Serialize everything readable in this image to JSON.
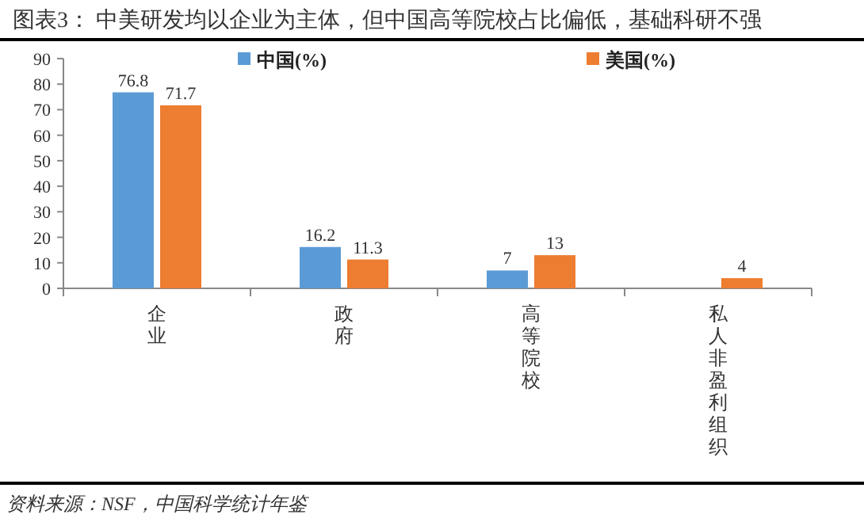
{
  "chart_data": {
    "type": "bar",
    "title": "图表3：  中美研发均以企业为主体，但中国高等院校占比偏低，基础科研不强",
    "categories": [
      "企业",
      "政府",
      "高等院校",
      "私人非盈利组织"
    ],
    "series": [
      {
        "name": "中国(%)",
        "color": "#5b9bd5",
        "values": [
          76.8,
          16.2,
          7,
          null
        ]
      },
      {
        "name": "美国(%)",
        "color": "#ed7d31",
        "values": [
          71.7,
          11.3,
          13,
          4
        ]
      }
    ],
    "ylim": [
      0,
      90
    ],
    "yticks": [
      0,
      10,
      20,
      30,
      40,
      50,
      60,
      70,
      80,
      90
    ],
    "data_labels": true,
    "legend": "top",
    "grid": false,
    "annotations": [
      "资料来源：NSF，中国科学统计年鉴"
    ]
  }
}
